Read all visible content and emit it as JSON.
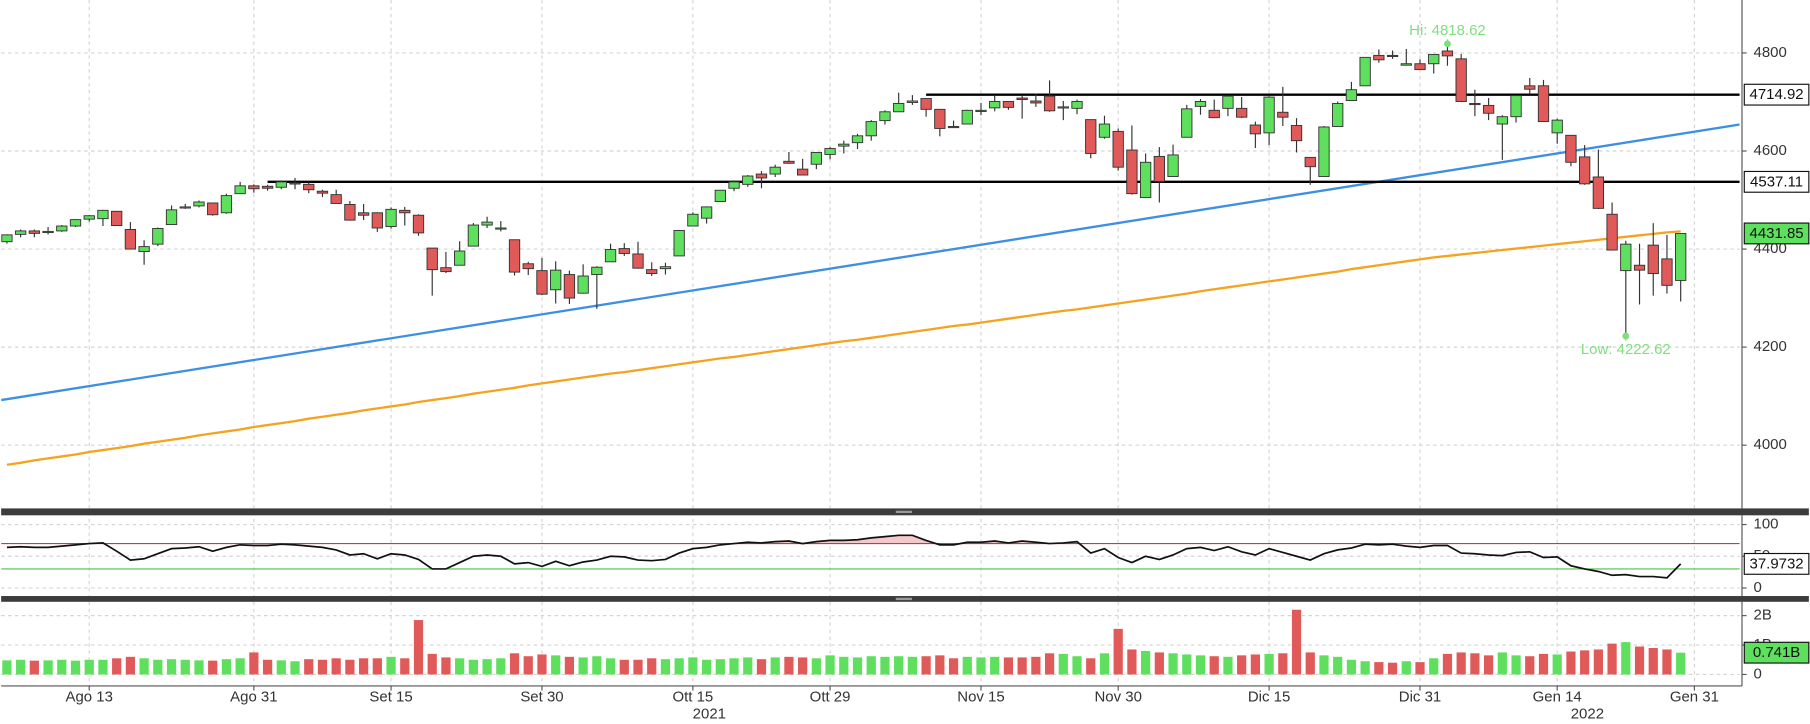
{
  "chart_data": [
    {
      "type": "candlestick",
      "up_color": "#5ee05e",
      "down_color": "#e05a5a",
      "grid": true,
      "xlim": [
        -0.42,
        126.3
      ],
      "xticks": [
        {
          "value": 6,
          "label": "Ago 13"
        },
        {
          "value": 18,
          "label": "Ago 31"
        },
        {
          "value": 28,
          "label": "Set 15"
        },
        {
          "value": 39,
          "label": "Set 30"
        },
        {
          "value": 50,
          "label": "Ott 15"
        },
        {
          "value": 60,
          "label": "Ott 29"
        },
        {
          "value": 71,
          "label": "Nov 15"
        },
        {
          "value": 81,
          "label": "Nov 30"
        },
        {
          "value": 92,
          "label": "Dic 15"
        },
        {
          "value": 103,
          "label": "Dic 31"
        },
        {
          "value": 113,
          "label": "Gen 14"
        },
        {
          "value": 123,
          "label": "Gen 31"
        }
      ],
      "year_labels": [
        {
          "value": 51.2,
          "label": "2021"
        },
        {
          "value": 115.2,
          "label": "2022"
        }
      ],
      "ylim": [
        3871,
        4908
      ],
      "yticks": [
        4000,
        4200,
        4400,
        4600,
        4800
      ],
      "open": [
        4415,
        4430,
        4437,
        4435,
        4437,
        4447,
        4461,
        4462,
        4477,
        4440,
        4395,
        4410,
        4450,
        4484,
        4488,
        4494,
        4474,
        4513,
        4529,
        4528,
        4526,
        4535,
        4532,
        4518,
        4511,
        4491,
        4474,
        4474,
        4446,
        4479,
        4469,
        4402,
        4362,
        4367,
        4406,
        4449,
        4442,
        4419,
        4370,
        4356,
        4317,
        4348,
        4310,
        4348,
        4374,
        4401,
        4390,
        4358,
        4360,
        4386,
        4447,
        4463,
        4497,
        4524,
        4532,
        4553,
        4553,
        4579,
        4563,
        4573,
        4593,
        4610,
        4617,
        4631,
        4662,
        4680,
        4699,
        4707,
        4685,
        4650,
        4655,
        4683,
        4688,
        4701,
        4708,
        4702,
        4712,
        4690,
        4687,
        4664,
        4628,
        4640,
        4602,
        4505,
        4589,
        4548,
        4628,
        4691,
        4683,
        4687,
        4687,
        4653,
        4637,
        4679,
        4652,
        4587,
        4548,
        4650,
        4703,
        4733,
        4795,
        4795,
        4775,
        4778,
        4778,
        4804,
        4788,
        4697,
        4693,
        4655,
        4670,
        4733,
        4733,
        4637,
        4632,
        4588,
        4547,
        4471,
        4356,
        4367,
        4408,
        4380,
        4336
      ],
      "high": [
        4430,
        4440,
        4440,
        4445,
        4449,
        4461,
        4469,
        4480,
        4478,
        4455,
        4418,
        4444,
        4489,
        4492,
        4499,
        4495,
        4513,
        4537,
        4532,
        4531,
        4540,
        4545,
        4536,
        4521,
        4521,
        4498,
        4492,
        4475,
        4485,
        4486,
        4471,
        4402,
        4394,
        4416,
        4453,
        4466,
        4457,
        4419,
        4374,
        4382,
        4375,
        4356,
        4369,
        4365,
        4411,
        4412,
        4415,
        4373,
        4372,
        4439,
        4475,
        4487,
        4520,
        4540,
        4551,
        4559,
        4572,
        4598,
        4584,
        4597,
        4608,
        4621,
        4635,
        4663,
        4683,
        4719,
        4714,
        4708,
        4685,
        4662,
        4684,
        4698,
        4714,
        4701,
        4713,
        4717,
        4744,
        4702,
        4705,
        4664,
        4672,
        4646,
        4652,
        4595,
        4608,
        4613,
        4694,
        4706,
        4705,
        4713,
        4710,
        4660,
        4712,
        4731,
        4667,
        4587,
        4651,
        4701,
        4741,
        4791,
        4807,
        4805,
        4808,
        4787,
        4797,
        4818.62,
        4798,
        4725,
        4708,
        4673,
        4714,
        4749,
        4745,
        4666,
        4632,
        4612,
        4603,
        4495,
        4417,
        4411,
        4453,
        4429,
        4432
      ],
      "low": [
        4411,
        4424,
        4424,
        4430,
        4435,
        4445,
        4456,
        4447,
        4447,
        4399,
        4368,
        4406,
        4450,
        4482,
        4485,
        4468,
        4472,
        4513,
        4515,
        4519,
        4522,
        4522,
        4514,
        4506,
        4493,
        4458,
        4459,
        4435,
        4442,
        4448,
        4427,
        4305,
        4351,
        4367,
        4406,
        4443,
        4436,
        4346,
        4347,
        4306,
        4289,
        4288,
        4309,
        4278,
        4374,
        4386,
        4360,
        4345,
        4348,
        4386,
        4447,
        4452,
        4497,
        4518,
        4527,
        4524,
        4547,
        4574,
        4551,
        4563,
        4583,
        4595,
        4604,
        4621,
        4654,
        4680,
        4694,
        4670,
        4630,
        4647,
        4655,
        4673,
        4681,
        4684,
        4666,
        4690,
        4680,
        4663,
        4675,
        4585,
        4625,
        4560,
        4511,
        4504,
        4495,
        4547,
        4628,
        4674,
        4667,
        4671,
        4667,
        4606,
        4612,
        4651,
        4597,
        4531,
        4548,
        4650,
        4703,
        4733,
        4780,
        4788,
        4775,
        4766,
        4758,
        4774,
        4700,
        4671,
        4663,
        4582,
        4658,
        4716,
        4660,
        4615,
        4569,
        4531,
        4482,
        4397,
        4222.62,
        4287,
        4305,
        4309,
        4293
      ],
      "close": [
        4429,
        4437,
        4432,
        4436,
        4447,
        4460,
        4468,
        4479,
        4448,
        4400,
        4405,
        4442,
        4480,
        4486,
        4496,
        4470,
        4509,
        4529,
        4523,
        4524,
        4537,
        4535,
        4521,
        4514,
        4493,
        4459,
        4469,
        4443,
        4481,
        4474,
        4433,
        4358,
        4354,
        4396,
        4449,
        4455,
        4443,
        4353,
        4360,
        4308,
        4357,
        4300,
        4345,
        4363,
        4399,
        4391,
        4361,
        4350,
        4364,
        4438,
        4471,
        4486,
        4520,
        4537,
        4549,
        4545,
        4567,
        4575,
        4551,
        4597,
        4605,
        4614,
        4631,
        4660,
        4680,
        4697,
        4702,
        4685,
        4646,
        4649,
        4683,
        4683,
        4701,
        4689,
        4705,
        4698,
        4682,
        4690,
        4701,
        4595,
        4655,
        4567,
        4513,
        4577,
        4538,
        4592,
        4686,
        4701,
        4668,
        4712,
        4669,
        4635,
        4710,
        4669,
        4621,
        4568,
        4649,
        4697,
        4725,
        4791,
        4786,
        4793,
        4778,
        4766,
        4797,
        4794,
        4701,
        4696,
        4677,
        4670,
        4713,
        4726,
        4660,
        4663,
        4577,
        4533,
        4483,
        4398,
        4410,
        4357,
        4350,
        4326,
        4431.85
      ],
      "moving_average": {
        "color": "#f5a31f",
        "values": [
          3960,
          3964,
          3969,
          3973,
          3977,
          3981,
          3986,
          3990,
          3994,
          3998,
          4003,
          4007,
          4011,
          4015,
          4020,
          4024,
          4028,
          4032,
          4037,
          4041,
          4045,
          4049,
          4054,
          4058,
          4062,
          4066,
          4071,
          4075,
          4079,
          4083,
          4088,
          4092,
          4096,
          4100,
          4105,
          4109,
          4113,
          4117,
          4122,
          4126,
          4130,
          4134,
          4138,
          4142,
          4146,
          4149,
          4153,
          4157,
          4161,
          4165,
          4169,
          4173,
          4177,
          4180,
          4184,
          4188,
          4192,
          4196,
          4200,
          4204,
          4208,
          4212,
          4215,
          4219,
          4223,
          4227,
          4231,
          4235,
          4239,
          4243,
          4246,
          4250,
          4254,
          4258,
          4262,
          4266,
          4270,
          4274,
          4277,
          4281,
          4285,
          4289,
          4293,
          4297,
          4301,
          4305,
          4309,
          4314,
          4318,
          4322,
          4326,
          4330,
          4334,
          4338,
          4342,
          4346,
          4350,
          4354,
          4359,
          4363,
          4367,
          4371,
          4375,
          4379,
          4383,
          4386,
          4389,
          4392,
          4395,
          4398,
          4401,
          4404,
          4407,
          4410,
          4413,
          4416,
          4419,
          4422,
          4425,
          4428,
          4431,
          4434,
          4436
        ]
      },
      "trendline": {
        "color": "#3d8fe3",
        "x": [
          -0.42,
          126.3
        ],
        "values": [
          4092,
          4654
        ]
      },
      "levels": [
        {
          "value": 4714.92,
          "start": 67,
          "color": "#000000"
        },
        {
          "value": 4537.11,
          "start": 19,
          "color": "#000000"
        }
      ],
      "annotations": [
        {
          "label": "Hi: 4818.62",
          "value": 4818.62,
          "color": "#7fdf7f"
        },
        {
          "label": "Low: 4222.62",
          "value": 4222.62,
          "color": "#7fdf7f"
        }
      ]
    },
    {
      "type": "line",
      "color": "#111111",
      "overbought_fill": "#f5c9c9",
      "ylim": [
        -12.7,
        114.5
      ],
      "yticks": [
        0,
        50,
        100
      ],
      "levels": [
        {
          "value": 70,
          "color": "#c83a3a"
        },
        {
          "value": 30,
          "color": "#49c449"
        }
      ],
      "values": [
        64,
        65,
        64,
        64,
        66,
        68,
        70,
        71,
        58,
        44,
        46,
        54,
        62,
        63,
        65,
        58,
        64,
        68,
        67,
        67,
        69,
        68,
        66,
        64,
        60,
        52,
        54,
        46,
        54,
        52,
        45,
        30,
        30,
        40,
        50,
        52,
        50,
        38,
        40,
        34,
        42,
        35,
        41,
        44,
        50,
        49,
        44,
        43,
        45,
        55,
        62,
        64,
        68,
        70,
        72,
        71,
        73,
        74,
        70,
        73,
        75,
        75,
        76,
        79,
        81,
        83,
        83,
        75,
        68,
        68,
        72,
        72,
        74,
        71,
        74,
        72,
        70,
        71,
        73,
        55,
        62,
        48,
        40,
        50,
        45,
        52,
        62,
        64,
        59,
        65,
        57,
        52,
        62,
        56,
        50,
        44,
        54,
        60,
        63,
        69,
        68,
        69,
        66,
        64,
        67,
        67,
        55,
        54,
        52,
        51,
        56,
        57,
        48,
        49,
        35,
        30,
        26,
        20,
        21,
        18,
        18,
        16,
        37.9732
      ]
    },
    {
      "type": "bar",
      "ylim": [
        -0.39,
        2.47
      ],
      "yticks": [
        0,
        {
          "value": 1,
          "label": "1B"
        },
        {
          "value": 2,
          "label": "2B"
        }
      ],
      "values": [
        0.48,
        0.5,
        0.47,
        0.48,
        0.5,
        0.47,
        0.5,
        0.5,
        0.55,
        0.6,
        0.55,
        0.5,
        0.52,
        0.5,
        0.48,
        0.47,
        0.52,
        0.55,
        0.75,
        0.5,
        0.48,
        0.45,
        0.52,
        0.5,
        0.55,
        0.5,
        0.55,
        0.55,
        0.6,
        0.55,
        1.85,
        0.7,
        0.58,
        0.55,
        0.5,
        0.52,
        0.55,
        0.72,
        0.62,
        0.68,
        0.65,
        0.6,
        0.58,
        0.62,
        0.55,
        0.5,
        0.5,
        0.55,
        0.52,
        0.55,
        0.58,
        0.5,
        0.52,
        0.55,
        0.58,
        0.52,
        0.58,
        0.6,
        0.58,
        0.55,
        0.65,
        0.6,
        0.58,
        0.62,
        0.6,
        0.62,
        0.6,
        0.62,
        0.65,
        0.55,
        0.6,
        0.58,
        0.6,
        0.58,
        0.58,
        0.6,
        0.72,
        0.7,
        0.62,
        0.55,
        0.72,
        1.55,
        0.85,
        0.8,
        0.75,
        0.72,
        0.68,
        0.65,
        0.62,
        0.6,
        0.65,
        0.68,
        0.7,
        0.72,
        2.2,
        0.75,
        0.65,
        0.6,
        0.5,
        0.45,
        0.42,
        0.4,
        0.45,
        0.42,
        0.55,
        0.7,
        0.75,
        0.72,
        0.65,
        0.75,
        0.65,
        0.62,
        0.7,
        0.68,
        0.78,
        0.82,
        0.85,
        1.05,
        1.1,
        0.95,
        0.9,
        0.85,
        0.741
      ],
      "last_label": {
        "value": 0.741,
        "label": "0.741B"
      }
    }
  ]
}
